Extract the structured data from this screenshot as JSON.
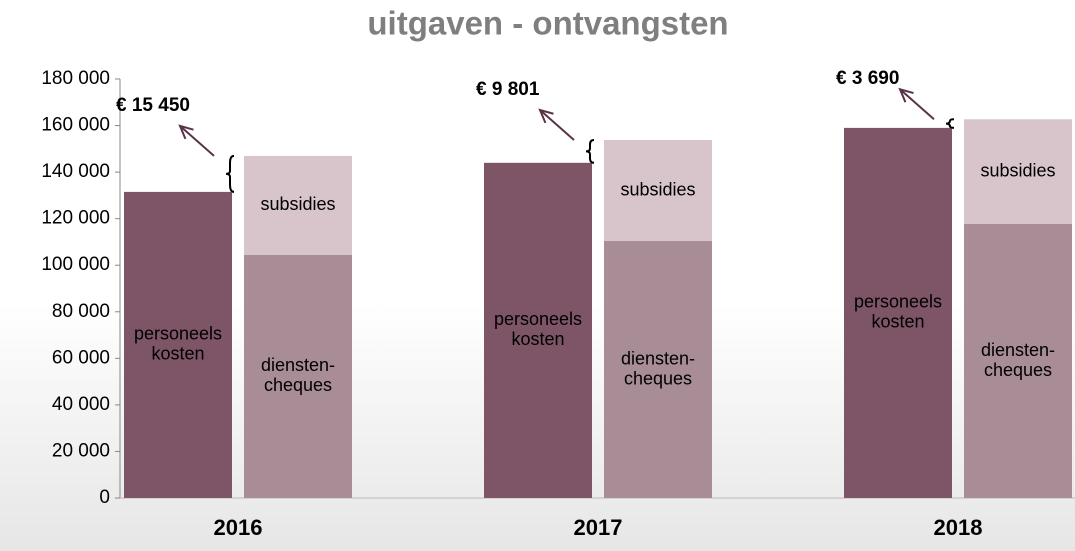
{
  "chart_data": {
    "type": "bar",
    "title": "uitgaven - ontvangsten",
    "categories": [
      "2016",
      "2017",
      "2018"
    ],
    "series": [
      {
        "name": [
          "personeels",
          "kosten"
        ],
        "color": "#7d5566",
        "values": [
          131500,
          144000,
          159000
        ],
        "group": "expense"
      },
      {
        "name": [
          "diensten-",
          "cheques"
        ],
        "color": "#a88c96",
        "values": [
          104500,
          110400,
          117700
        ],
        "group": "income"
      },
      {
        "name": [
          "subsidies"
        ],
        "color": "#d7c5cb",
        "values": [
          42450,
          43400,
          45000
        ],
        "group": "income"
      }
    ],
    "differences": {
      "values": [
        15450,
        9801,
        3690
      ],
      "value_labels": [
        "€ 15 450",
        "€ 9 801",
        "€ 3 690"
      ]
    },
    "ylim": [
      0,
      180000
    ],
    "yticks": [
      0,
      {
        "value": 20000,
        "label": "20 000"
      },
      {
        "value": 40000,
        "label": "40 000"
      },
      {
        "value": 60000,
        "label": "60 000"
      },
      {
        "value": 80000,
        "label": "80 000"
      },
      {
        "value": 100000,
        "label": "100 000"
      },
      {
        "value": 120000,
        "label": "120 000"
      },
      {
        "value": 140000,
        "label": "140 000"
      },
      {
        "value": 160000,
        "label": "160 000"
      },
      {
        "value": 180000,
        "label": "180 000"
      }
    ]
  }
}
